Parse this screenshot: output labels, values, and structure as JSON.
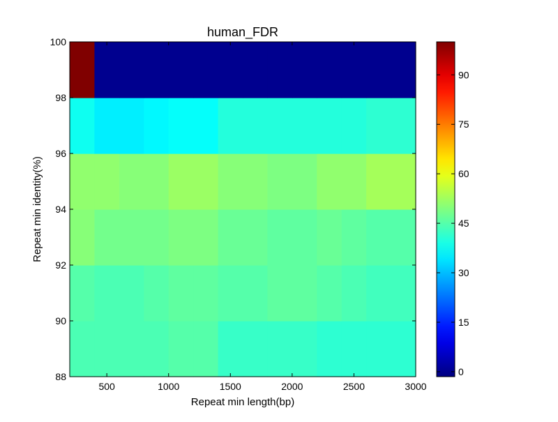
{
  "chart_data": {
    "type": "heatmap",
    "title": "human_FDR",
    "xlabel": "Repeat min length(bp)",
    "ylabel": "Repeat min identity(%)",
    "x_edges": [
      200,
      400,
      600,
      800,
      1000,
      1200,
      1400,
      1600,
      1800,
      2000,
      2200,
      2400,
      2600,
      2800,
      3000
    ],
    "y_edges": [
      88,
      90,
      92,
      94,
      96,
      98,
      100
    ],
    "xlim": [
      200,
      3000
    ],
    "ylim": [
      88,
      100
    ],
    "x_ticks": [
      500,
      1000,
      1500,
      2000,
      2500,
      3000
    ],
    "x_tick_labels": [
      "500",
      "1000",
      "1500",
      "2000",
      "2500",
      "3000"
    ],
    "y_ticks": [
      88,
      90,
      92,
      94,
      96,
      98,
      100
    ],
    "y_tick_labels": [
      "88",
      "90",
      "92",
      "94",
      "96",
      "98",
      "100"
    ],
    "values": [
      [
        44,
        44,
        44,
        44,
        45,
        45,
        42,
        42,
        42,
        42,
        41,
        41,
        41,
        41
      ],
      [
        45,
        44,
        44,
        45,
        46,
        46,
        45,
        45,
        46,
        46,
        45,
        44,
        43,
        43
      ],
      [
        50,
        48,
        48,
        48,
        49,
        49,
        47,
        47,
        46,
        46,
        47,
        46,
        45,
        45
      ],
      [
        51,
        51,
        50,
        50,
        52,
        52,
        50,
        50,
        49,
        49,
        51,
        51,
        53,
        53
      ],
      [
        38,
        35,
        35,
        36,
        37,
        37,
        40,
        40,
        40,
        40,
        40,
        40,
        41,
        41
      ],
      [
        100,
        0,
        0,
        0,
        0,
        0,
        0,
        0,
        0,
        0,
        0,
        0,
        0,
        0
      ]
    ],
    "colorbar": {
      "colormap": "jet",
      "range": [
        -1.5,
        100
      ],
      "ticks": [
        0,
        15,
        30,
        45,
        60,
        75,
        90
      ],
      "tick_labels": [
        "0",
        "15",
        "30",
        "45",
        "60",
        "75",
        "90"
      ]
    },
    "grid": false,
    "legend": "none"
  }
}
